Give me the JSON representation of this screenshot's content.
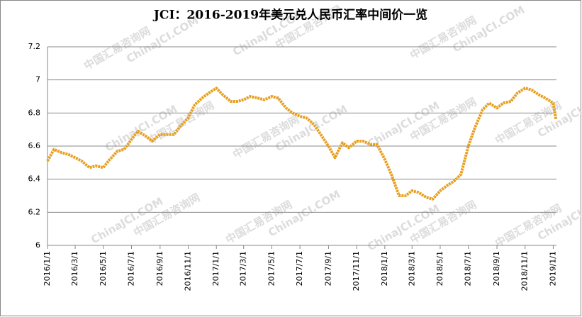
{
  "chart_data": {
    "type": "line",
    "title": "JCI：2016-2019年美元兑人民币汇率中间价一览",
    "watermark": [
      "中国汇易咨询网",
      "ChinaJCI.COM"
    ],
    "x": [
      "2016/1/1",
      "2016/1/15",
      "2016/2/1",
      "2016/2/15",
      "2016/3/1",
      "2016/3/15",
      "2016/4/1",
      "2016/4/15",
      "2016/5/1",
      "2016/5/15",
      "2016/6/1",
      "2016/6/15",
      "2016/7/1",
      "2016/7/15",
      "2016/8/1",
      "2016/8/15",
      "2016/9/1",
      "2016/9/15",
      "2016/10/1",
      "2016/10/15",
      "2016/11/1",
      "2016/11/15",
      "2016/12/1",
      "2016/12/15",
      "2017/1/1",
      "2017/1/15",
      "2017/2/1",
      "2017/2/15",
      "2017/3/1",
      "2017/3/15",
      "2017/4/1",
      "2017/4/15",
      "2017/5/1",
      "2017/5/15",
      "2017/6/1",
      "2017/6/15",
      "2017/7/1",
      "2017/7/15",
      "2017/8/1",
      "2017/8/15",
      "2017/9/1",
      "2017/9/15",
      "2017/10/1",
      "2017/10/15",
      "2017/11/1",
      "2017/11/15",
      "2017/12/1",
      "2017/12/15",
      "2018/1/1",
      "2018/1/15",
      "2018/2/1",
      "2018/2/15",
      "2018/3/1",
      "2018/3/15",
      "2018/4/1",
      "2018/4/15",
      "2018/5/1",
      "2018/5/15",
      "2018/6/1",
      "2018/6/15",
      "2018/7/1",
      "2018/7/15",
      "2018/8/1",
      "2018/8/15",
      "2018/9/1",
      "2018/9/15",
      "2018/10/1",
      "2018/10/15",
      "2018/11/1",
      "2018/11/15",
      "2018/12/1",
      "2018/12/15",
      "2019/1/1",
      "2019/1/7"
    ],
    "series": [
      {
        "name": "美元兑人民币汇率中间价",
        "color": "#e8a020",
        "values": [
          6.51,
          6.58,
          6.56,
          6.55,
          6.53,
          6.51,
          6.47,
          6.48,
          6.47,
          6.52,
          6.57,
          6.58,
          6.64,
          6.69,
          6.66,
          6.63,
          6.67,
          6.67,
          6.67,
          6.72,
          6.77,
          6.85,
          6.89,
          6.92,
          6.95,
          6.91,
          6.87,
          6.87,
          6.88,
          6.9,
          6.89,
          6.88,
          6.9,
          6.89,
          6.83,
          6.8,
          6.78,
          6.77,
          6.73,
          6.67,
          6.6,
          6.53,
          6.62,
          6.59,
          6.63,
          6.63,
          6.61,
          6.61,
          6.52,
          6.43,
          6.3,
          6.3,
          6.33,
          6.32,
          6.29,
          6.28,
          6.33,
          6.36,
          6.39,
          6.43,
          6.6,
          6.71,
          6.82,
          6.86,
          6.83,
          6.86,
          6.87,
          6.92,
          6.95,
          6.94,
          6.91,
          6.89,
          6.86,
          6.76
        ]
      }
    ],
    "xlim": [
      "2016/1/1",
      "2019/1/8"
    ],
    "xticks": [
      "2016/1/1",
      "2016/3/1",
      "2016/5/1",
      "2016/7/1",
      "2016/9/1",
      "2016/11/1",
      "2017/1/1",
      "2017/3/1",
      "2017/5/1",
      "2017/7/1",
      "2017/9/1",
      "2017/11/1",
      "2018/1/1",
      "2018/3/1",
      "2018/5/1",
      "2018/7/1",
      "2018/9/1",
      "2018/11/1",
      "2019/1/1"
    ],
    "ylim": [
      6,
      7.2
    ],
    "yticks": [
      6,
      6.2,
      6.4,
      6.6,
      6.8,
      7,
      7.2
    ],
    "grid": true
  }
}
